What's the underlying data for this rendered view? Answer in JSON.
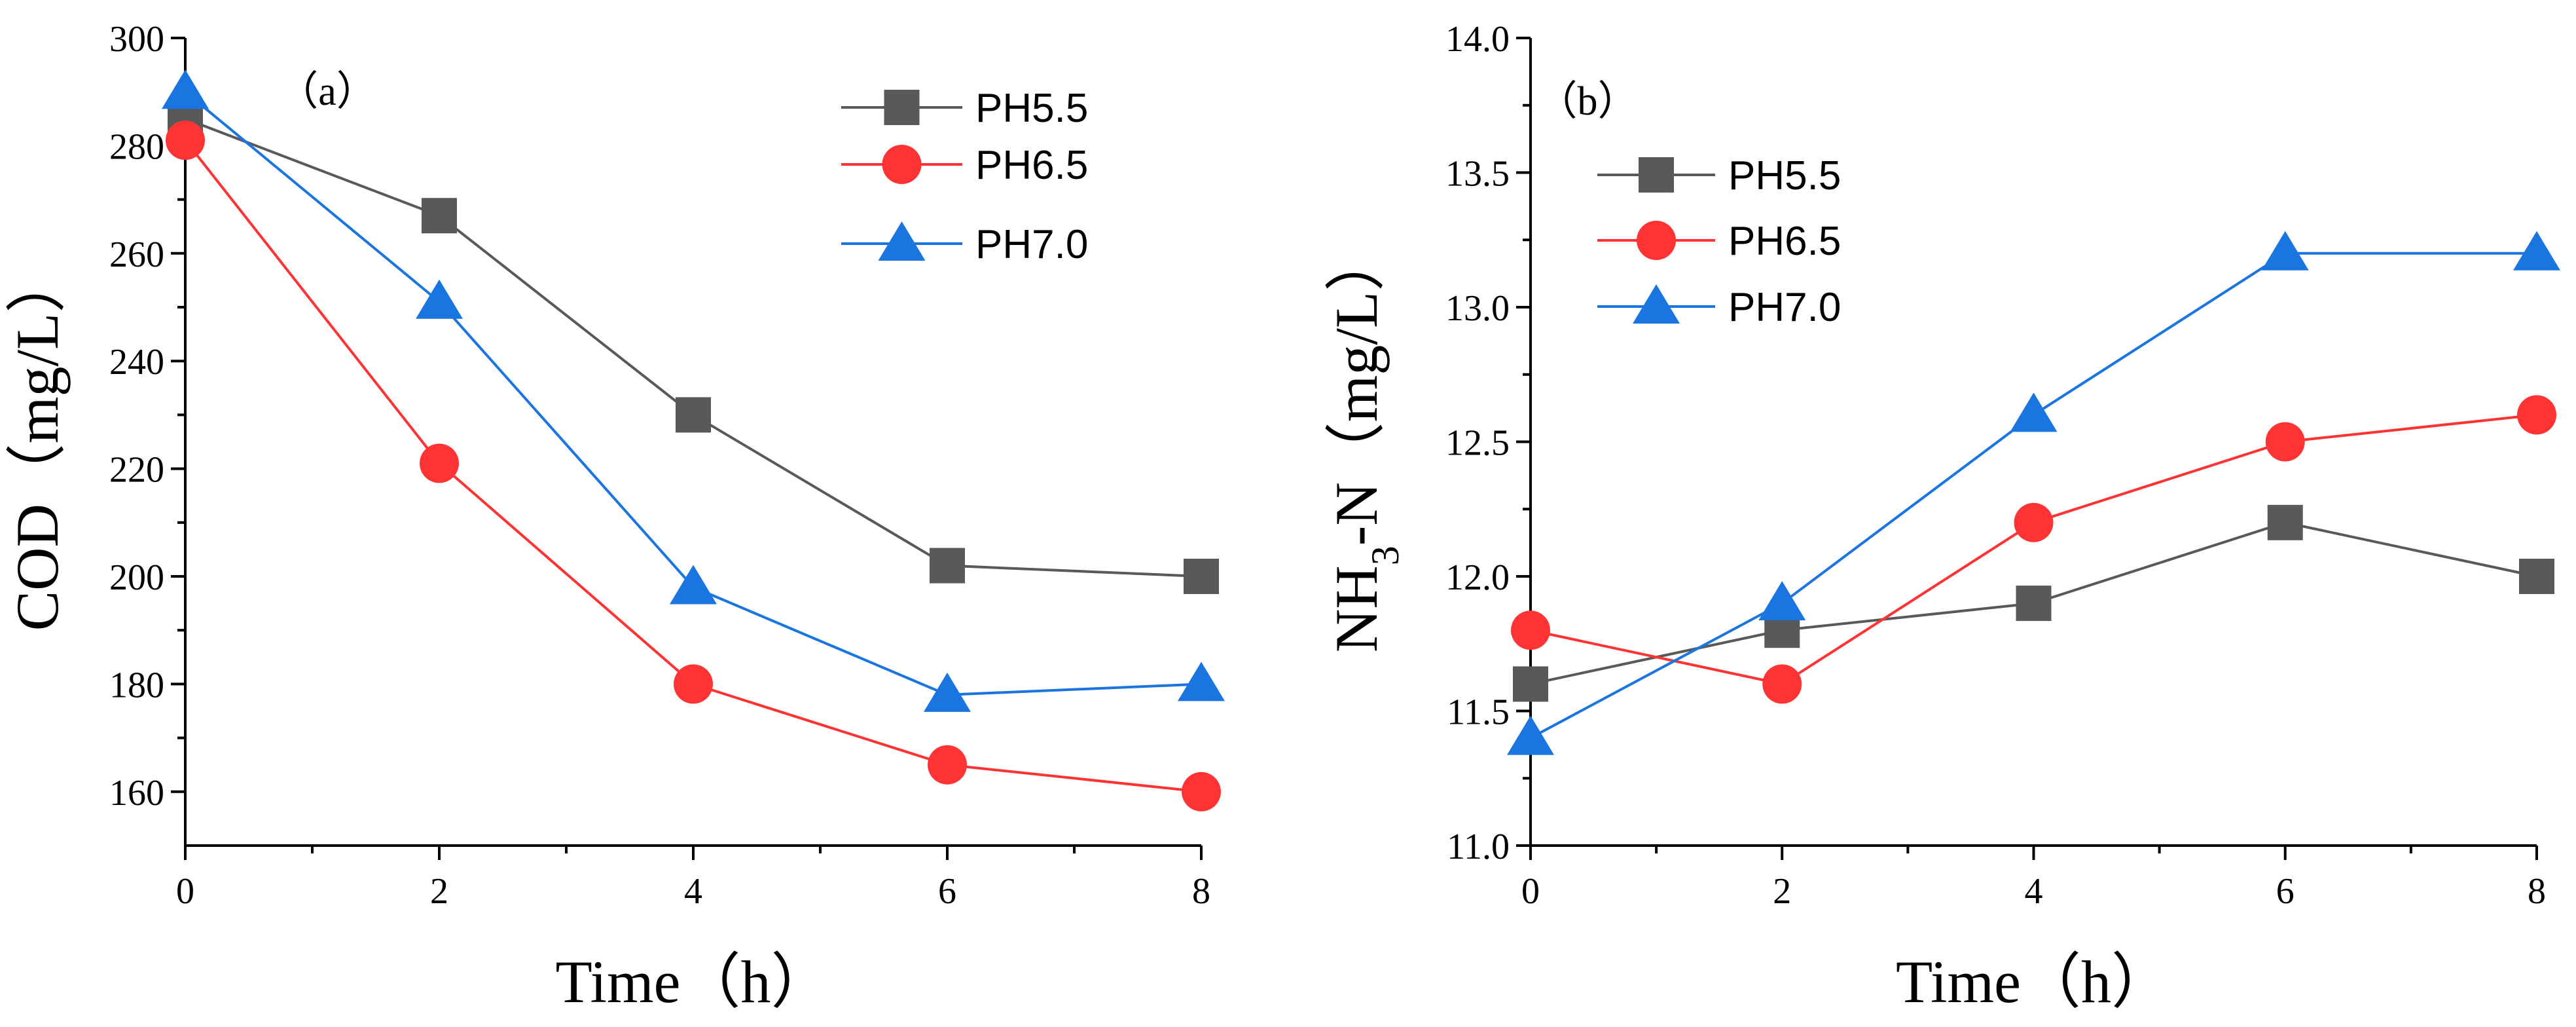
{
  "chart_data": [
    {
      "type": "line",
      "panel_label": "（a）",
      "xlabel": "Time（h）",
      "ylabel": "COD（mg/L）",
      "x": [
        0,
        2,
        4,
        6,
        8
      ],
      "xlim": [
        0,
        8
      ],
      "ylim": [
        150,
        300
      ],
      "xticks": [
        0,
        2,
        4,
        6,
        8
      ],
      "yticks": [
        160,
        180,
        200,
        220,
        240,
        260,
        280,
        300
      ],
      "ytick_labels": [
        "160",
        "180",
        "200",
        "220",
        "240",
        "260",
        "280",
        "300"
      ],
      "legend_position": "top-right",
      "series": [
        {
          "name": "PH5.5",
          "color": "#595959",
          "marker": "square",
          "values": [
            285,
            267,
            230,
            202,
            200
          ]
        },
        {
          "name": "PH6.5",
          "color": "#ff3333",
          "marker": "circle",
          "values": [
            281,
            221,
            180,
            165,
            160
          ]
        },
        {
          "name": "PH7.0",
          "color": "#1a75e0",
          "marker": "triangle",
          "values": [
            290,
            251,
            198,
            178,
            180
          ]
        }
      ]
    },
    {
      "type": "line",
      "panel_label": "（b）",
      "xlabel": "Time（h）",
      "ylabel": {
        "prefix": "NH",
        "subscript": "3",
        "suffix": "-N（mg/L）"
      },
      "x": [
        0,
        2,
        4,
        6,
        8
      ],
      "xlim": [
        0,
        8
      ],
      "ylim": [
        11.0,
        14.0
      ],
      "xticks": [
        0,
        2,
        4,
        6,
        8
      ],
      "yticks": [
        11.0,
        11.5,
        12.0,
        12.5,
        13.0,
        13.5,
        14.0
      ],
      "ytick_labels": [
        "11.0",
        "11.5",
        "12.0",
        "12.5",
        "13.0",
        "13.5",
        "14.0"
      ],
      "legend_position": "top-left",
      "series": [
        {
          "name": "PH5.5",
          "color": "#595959",
          "marker": "square",
          "values": [
            11.6,
            11.8,
            11.9,
            12.2,
            12.0
          ]
        },
        {
          "name": "PH6.5",
          "color": "#ff3333",
          "marker": "circle",
          "values": [
            11.8,
            11.6,
            12.2,
            12.5,
            12.6
          ]
        },
        {
          "name": "PH7.0",
          "color": "#1a75e0",
          "marker": "triangle",
          "values": [
            11.4,
            11.9,
            12.6,
            13.2,
            13.2
          ]
        }
      ]
    }
  ]
}
